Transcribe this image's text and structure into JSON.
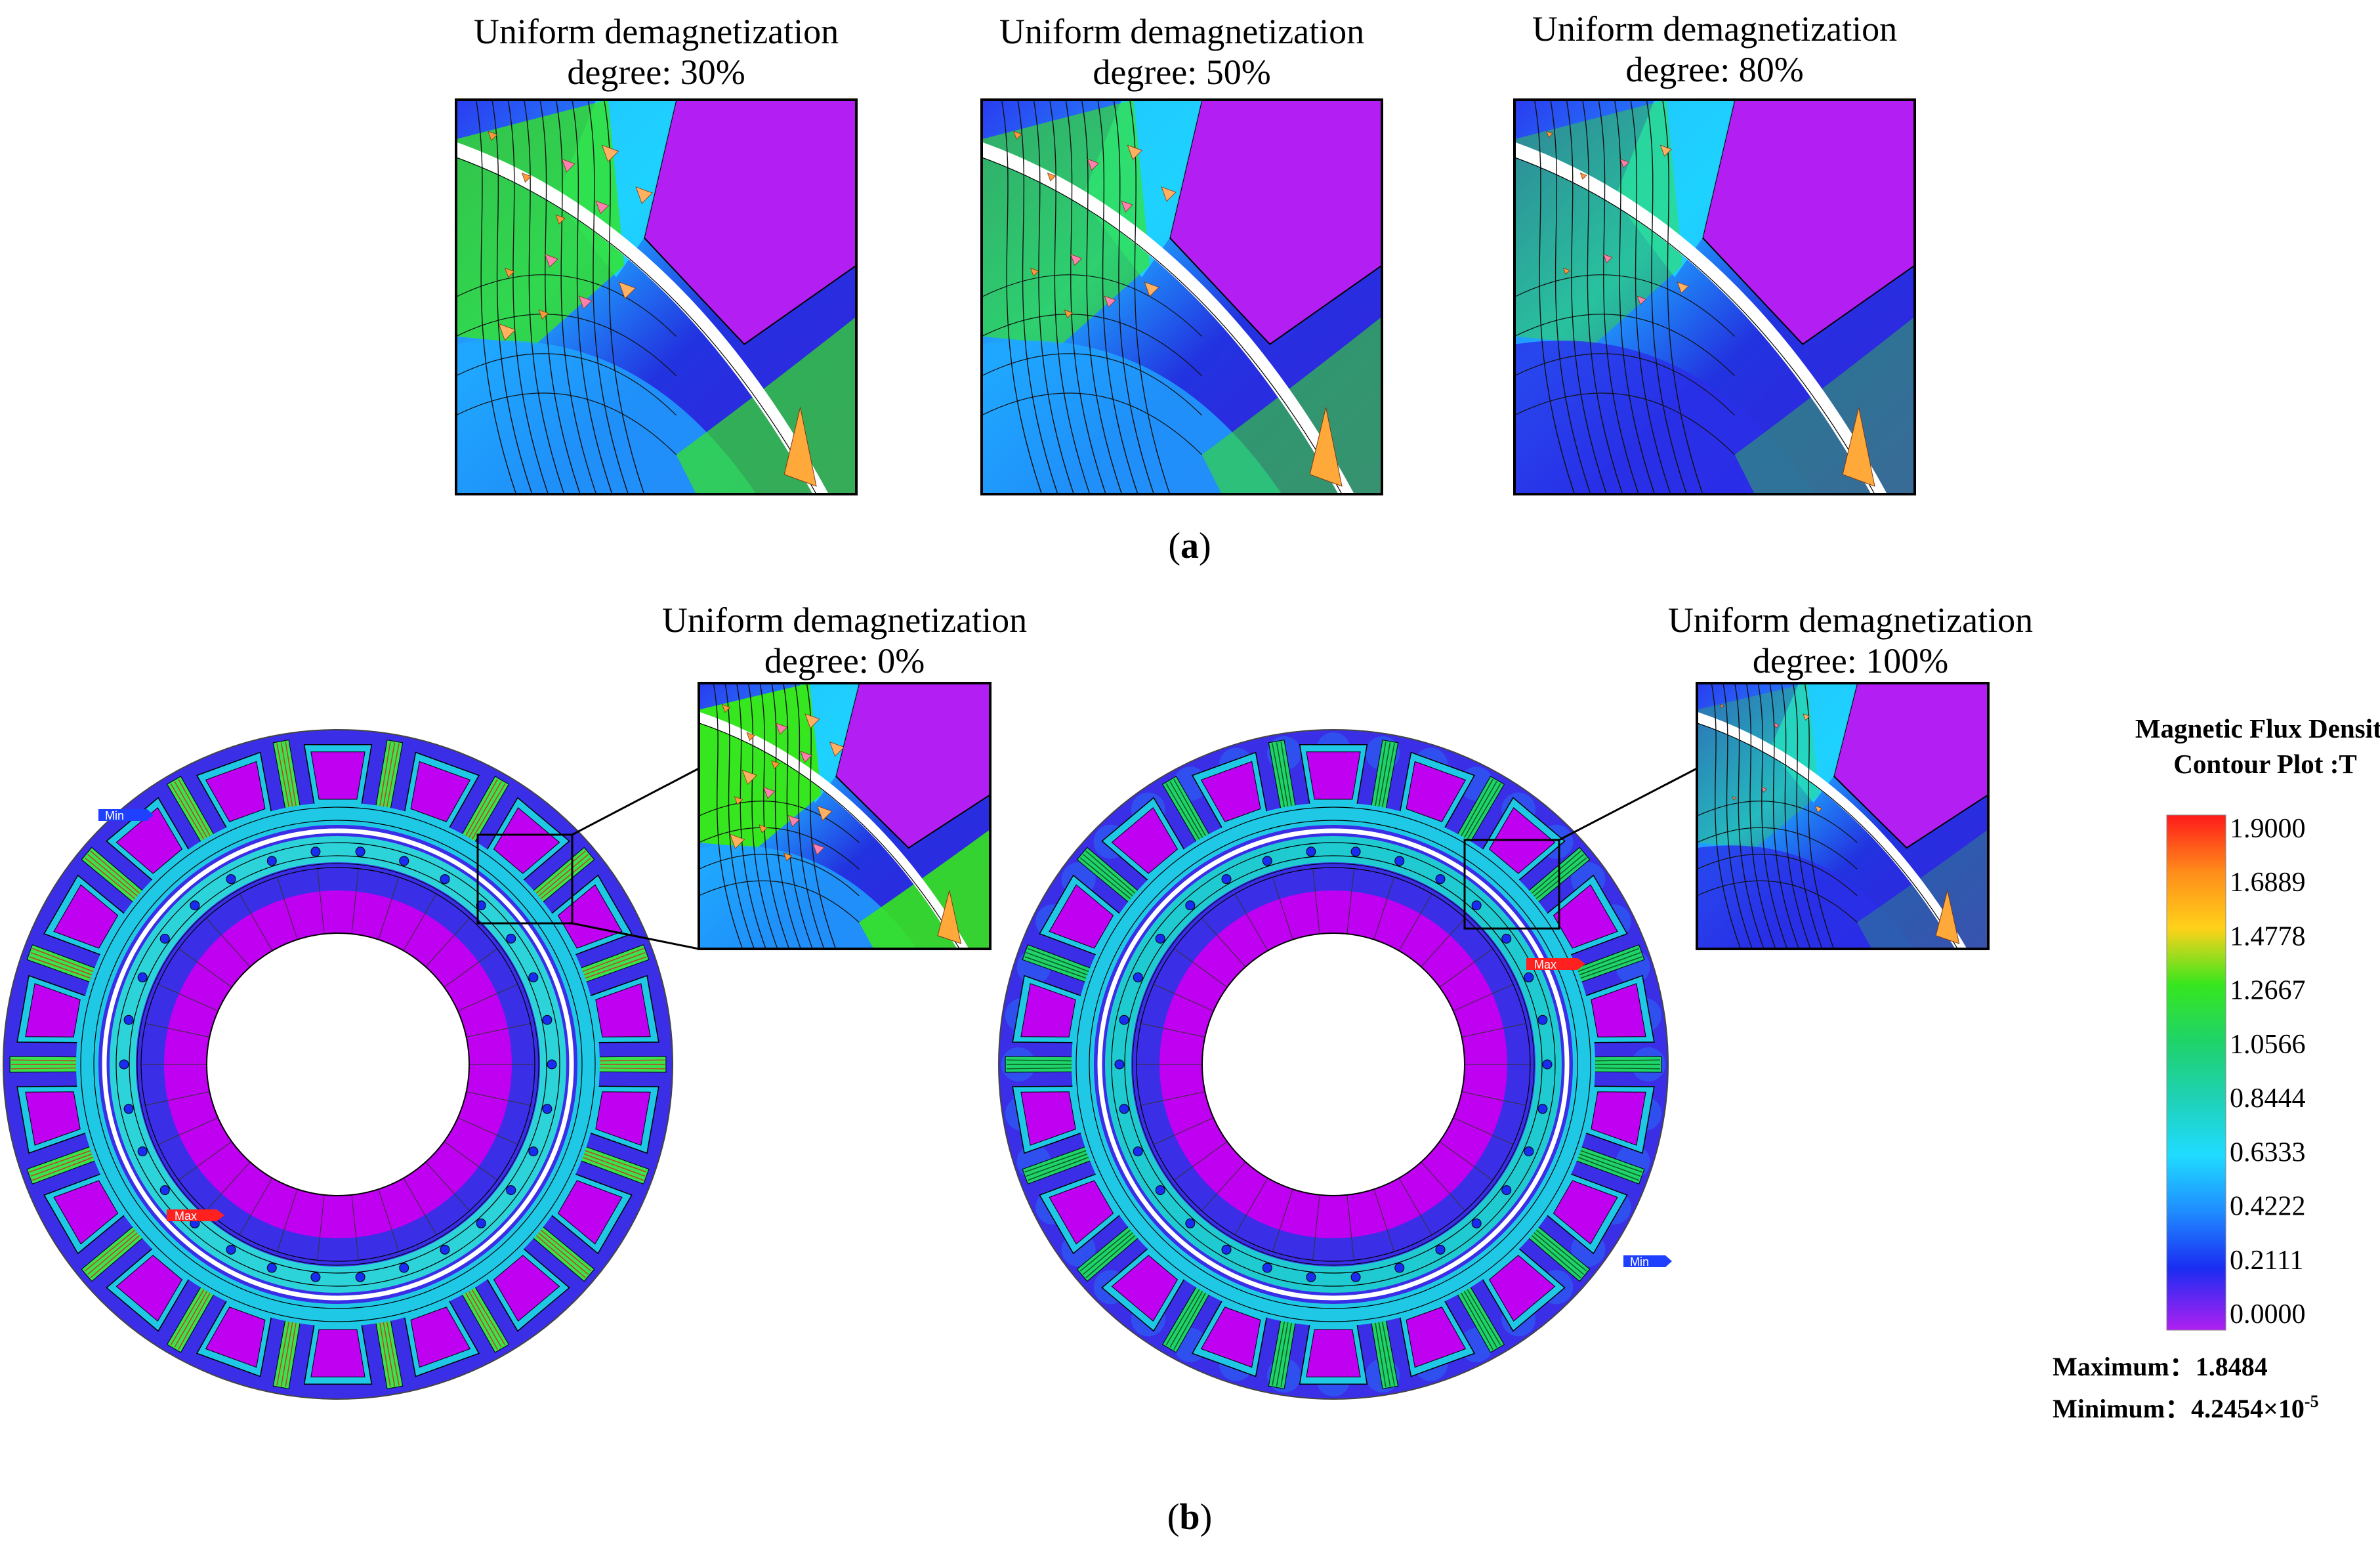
{
  "panel_a": {
    "label_open": "(",
    "label_letter": "a",
    "label_close": ")",
    "insets": [
      {
        "line1": "Uniform demagnetization",
        "line2": "degree: 30%"
      },
      {
        "line1": "Uniform demagnetization",
        "line2": "degree: 50%"
      },
      {
        "line1": "Uniform demagnetization",
        "line2": "degree: 80%"
      }
    ]
  },
  "panel_b": {
    "label_open": "(",
    "label_letter": "b",
    "label_close": ")",
    "motors": [
      {
        "line1": "Uniform demagnetization",
        "line2": "degree: 0%",
        "min_tag": "Min",
        "max_tag": "Max"
      },
      {
        "line1": "Uniform demagnetization",
        "line2": "degree: 100%",
        "min_tag": "Min",
        "max_tag": "Max"
      }
    ]
  },
  "legend": {
    "title_line1": "Magnetic Flux Density",
    "title_line2": "Contour Plot :T",
    "ticks": [
      "1.9000",
      "1.6889",
      "1.4778",
      "1.2667",
      "1.0566",
      "0.8444",
      "0.6333",
      "0.4222",
      "0.2111",
      "0.0000"
    ],
    "maximum_label": "Maximum：",
    "maximum_value": "1.8484",
    "minimum_label": "Minimum：",
    "minimum_value": "4.2454×10",
    "minimum_exponent": "-5"
  },
  "colors": {
    "scale": [
      "#ff1a1a",
      "#ff8c1a",
      "#ffd21a",
      "#36e61f",
      "#1fd36a",
      "#1fd1b5",
      "#1fdcff",
      "#1f8cff",
      "#1a2cf2",
      "#a020f0"
    ],
    "magnet": "#c000f0",
    "core": "#3a2ee6",
    "tooth": "#39e34e",
    "rim": "#1fc9e6",
    "air_gap": "#ffffff",
    "max_tag": "#ff2020",
    "min_tag": "#2040ff"
  }
}
